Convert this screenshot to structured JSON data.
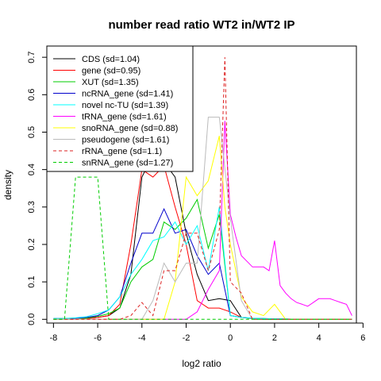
{
  "chart_data": {
    "type": "line",
    "title": "number read ratio WT2 in/WT2 IP",
    "xlabel": "log2 ratio",
    "ylabel": "density",
    "xlim": [
      -8.3,
      5.7
    ],
    "ylim": [
      -0.01,
      0.73
    ],
    "xticks": [
      -8,
      -6,
      -4,
      -2,
      0,
      2,
      4,
      6
    ],
    "yticks": [
      0.0,
      0.1,
      0.2,
      0.3,
      0.4,
      0.5,
      0.6,
      0.7
    ],
    "xtick_labels": [
      "-8",
      "-6",
      "-4",
      "-2",
      "0",
      "2",
      "4",
      "6"
    ],
    "ytick_labels": [
      "0.0",
      "0.1",
      "0.2",
      "0.3",
      "0.4",
      "0.5",
      "0.6",
      "0.7"
    ],
    "grid": false,
    "legend_position": "top-left",
    "series": [
      {
        "name": "CDS (sd=1.04)",
        "color": "#000000",
        "dash": "solid",
        "x": [
          -8,
          -7.5,
          -7,
          -6.5,
          -6,
          -5.5,
          -5,
          -4.5,
          -4,
          -3.5,
          -3,
          -2.5,
          -2,
          -1.5,
          -1,
          -0.5,
          0,
          0.5,
          1,
          1.5,
          2,
          2.5,
          3,
          3.5,
          4,
          4.5,
          5,
          5.5
        ],
        "y": [
          0,
          0,
          0,
          0.002,
          0.005,
          0.01,
          0.03,
          0.12,
          0.38,
          0.44,
          0.42,
          0.38,
          0.23,
          0.12,
          0.05,
          0.055,
          0.05,
          0.005,
          0.002,
          0,
          0,
          0,
          0,
          0,
          0,
          0,
          0,
          0
        ]
      },
      {
        "name": "gene (sd=0.95)",
        "color": "#ff0000",
        "dash": "solid",
        "x": [
          -8,
          -7.5,
          -7,
          -6.5,
          -6,
          -5.5,
          -5,
          -4.5,
          -4,
          -3.5,
          -3,
          -2.5,
          -2,
          -1.5,
          -1,
          -0.5,
          0,
          0.5,
          1,
          1.5,
          2,
          2.5,
          3,
          3.5,
          4,
          4.5,
          5,
          5.5
        ],
        "y": [
          0,
          0,
          0,
          0.002,
          0.005,
          0.01,
          0.04,
          0.2,
          0.4,
          0.38,
          0.41,
          0.3,
          0.2,
          0.05,
          0.03,
          0.03,
          0.02,
          0.005,
          0.002,
          0,
          0,
          0,
          0,
          0,
          0,
          0,
          0,
          0
        ]
      },
      {
        "name": "XUT (sd=1.35)",
        "color": "#00cc00",
        "dash": "solid",
        "x": [
          -8,
          -7.5,
          -7,
          -6.5,
          -6,
          -5.5,
          -5,
          -4.5,
          -4,
          -3.5,
          -3,
          -2.5,
          -2,
          -1.5,
          -1,
          -0.5,
          0,
          0.5,
          1,
          1.5,
          2,
          2.5,
          3,
          3.5,
          4,
          4.5,
          5,
          5.5
        ],
        "y": [
          0,
          0,
          0,
          0.003,
          0.008,
          0.015,
          0.03,
          0.1,
          0.14,
          0.16,
          0.26,
          0.24,
          0.27,
          0.32,
          0.19,
          0.28,
          0.01,
          0.005,
          0.002,
          0,
          0,
          0,
          0,
          0,
          0,
          0,
          0,
          0
        ]
      },
      {
        "name": "ncRNA_gene (sd=1.41)",
        "color": "#0000cc",
        "dash": "solid",
        "x": [
          -8,
          -7.5,
          -7,
          -6.5,
          -6,
          -5.5,
          -5,
          -4.5,
          -4,
          -3.5,
          -3,
          -2.5,
          -2,
          -1.5,
          -1,
          -0.5,
          0,
          0.5,
          1,
          1.5,
          2,
          2.5,
          3,
          3.5,
          4,
          4.5,
          5,
          5.5
        ],
        "y": [
          0.002,
          0.002,
          0.003,
          0.005,
          0.01,
          0.025,
          0.06,
          0.15,
          0.23,
          0.23,
          0.295,
          0.23,
          0.24,
          0.17,
          0.12,
          0.15,
          0.01,
          0.005,
          0.003,
          0.002,
          0.001,
          0.001,
          0,
          0,
          0,
          0,
          0,
          0
        ]
      },
      {
        "name": "novel nc-TU (sd=1.39)",
        "color": "#00ffff",
        "dash": "solid",
        "x": [
          -8,
          -7.5,
          -7,
          -6.5,
          -6,
          -5.5,
          -5,
          -4.5,
          -4,
          -3.5,
          -3,
          -2.5,
          -2,
          -1.5,
          -1,
          -0.5,
          0,
          0.5,
          1,
          1.5,
          2,
          2.5,
          3,
          3.5,
          4,
          4.5,
          5,
          5.5
        ],
        "y": [
          0.002,
          0.002,
          0.004,
          0.007,
          0.015,
          0.025,
          0.06,
          0.12,
          0.16,
          0.21,
          0.22,
          0.26,
          0.2,
          0.25,
          0.13,
          0.3,
          0.01,
          0.005,
          0.003,
          0.002,
          0.001,
          0.001,
          0,
          0,
          0,
          0,
          0,
          0
        ]
      },
      {
        "name": "tRNA_gene (sd=1.61)",
        "color": "#ff00ff",
        "dash": "solid",
        "x": [
          -8,
          -7.5,
          -7,
          -6.5,
          -6,
          -5.5,
          -5,
          -4.5,
          -4,
          -3.5,
          -3,
          -2.5,
          -2,
          -1.5,
          -1,
          -0.5,
          -0.25,
          0,
          0.25,
          0.5,
          0.75,
          1,
          1.25,
          1.5,
          1.75,
          2,
          2.25,
          2.5,
          2.75,
          3,
          3.25,
          3.5,
          3.75,
          4,
          4.25,
          4.5,
          4.75,
          5,
          5.25,
          5.5
        ],
        "y": [
          0,
          0,
          0,
          0,
          0,
          0,
          0,
          0,
          0,
          0,
          0,
          0,
          0,
          0.02,
          0.08,
          0.13,
          0.53,
          0.28,
          0.22,
          0.17,
          0.155,
          0.14,
          0.14,
          0.14,
          0.13,
          0.21,
          0.09,
          0.07,
          0.055,
          0.045,
          0.04,
          0.035,
          0.045,
          0.055,
          0.055,
          0.055,
          0.05,
          0.045,
          0.04,
          0.01
        ]
      },
      {
        "name": "snoRNA_gene (sd=0.88)",
        "color": "#ffff00",
        "dash": "solid",
        "x": [
          -8,
          -7.5,
          -7,
          -6.5,
          -6,
          -5.5,
          -5,
          -4.5,
          -4,
          -3.5,
          -3,
          -2.5,
          -2,
          -1.5,
          -1,
          -0.5,
          -0.25,
          0,
          0.5,
          1,
          1.5,
          2,
          2.5,
          3,
          3.5,
          4,
          4.5,
          5,
          5.5
        ],
        "y": [
          0,
          0,
          0,
          0,
          0,
          0,
          0,
          0,
          0,
          0,
          0,
          0.1,
          0.38,
          0.33,
          0.37,
          0.49,
          0.3,
          0.2,
          0.06,
          0.02,
          0.01,
          0.04,
          0,
          0,
          0,
          0,
          0,
          0,
          0
        ]
      },
      {
        "name": "pseudogene (sd=1.61)",
        "color": "#bbbbbb",
        "dash": "solid",
        "x": [
          -8,
          -7.5,
          -7,
          -6.5,
          -6,
          -5.5,
          -5,
          -4.5,
          -4,
          -3.5,
          -3,
          -2.5,
          -2,
          -1.5,
          -1,
          -0.5,
          0,
          0.5,
          1,
          1.5,
          2,
          2.5,
          3,
          3.5,
          4,
          4.5,
          5,
          5.5
        ],
        "y": [
          0,
          0,
          0,
          0,
          0,
          0,
          0,
          0,
          0,
          0.05,
          0.15,
          0.1,
          0.15,
          0.15,
          0.54,
          0.54,
          0.27,
          0.05,
          0,
          0,
          0,
          0,
          0,
          0,
          0,
          0,
          0,
          0
        ]
      },
      {
        "name": "rRNA_gene (sd=1.1)",
        "color": "#dd2222",
        "dash": "dashed",
        "x": [
          -8,
          -7.5,
          -7,
          -6.5,
          -6,
          -5.5,
          -5,
          -4.5,
          -4,
          -3.5,
          -3,
          -2.5,
          -2,
          -1.5,
          -1,
          -0.5,
          -0.25,
          0,
          0.5,
          1,
          1.5,
          2,
          2.5,
          3,
          3.5,
          4,
          4.5,
          5,
          5.5
        ],
        "y": [
          0,
          0,
          0,
          0,
          0,
          0,
          0,
          0.01,
          0.045,
          0.01,
          0.13,
          0.13,
          0.23,
          0.23,
          0.13,
          0.24,
          0.7,
          0.1,
          0.07,
          0,
          0,
          0,
          0,
          0,
          0,
          0,
          0,
          0,
          0
        ]
      },
      {
        "name": "snRNA_gene (sd=1.27)",
        "color": "#00cc00",
        "dash": "dashed",
        "x": [
          -8,
          -7.5,
          -7,
          -6.5,
          -6,
          -5.5,
          -5,
          -4.5,
          -4,
          -3.5,
          -3,
          -2.5,
          -2,
          -1.5,
          -1,
          -0.5,
          0,
          0.5,
          1,
          1.5,
          2,
          2.5,
          3,
          3.5,
          4,
          4.5,
          5,
          5.5
        ],
        "y": [
          0,
          0,
          0.38,
          0.38,
          0.38,
          0,
          0,
          0,
          0,
          0,
          0,
          0,
          0,
          0,
          0,
          0,
          0,
          0,
          0,
          0,
          0,
          0,
          0,
          0,
          0,
          0,
          0,
          0
        ]
      }
    ]
  }
}
